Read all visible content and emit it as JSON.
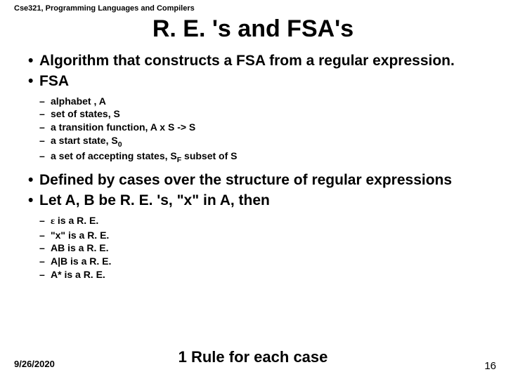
{
  "course_label": "Cse321, Programming Languages and Compilers",
  "title": "R. E. 's and FSA's",
  "bullets": {
    "b1": "Algorithm that constructs a FSA from a regular expression.",
    "b2": "FSA",
    "b2_sub": {
      "s1": "alphabet , A",
      "s2": "set of states, S",
      "s3": "a transition function,  A x S -> S",
      "s4_pre": "a start state, S",
      "s4_sub": "0",
      "s5_pre": "a set of accepting states, S",
      "s5_sub": "F",
      "s5_post": " subset of S"
    },
    "b3": "Defined by cases over the structure of regular expressions",
    "b4": "Let A, B be R. E. 's, \"x\" in A, then",
    "b4_sub": {
      "s1_pre": " ",
      "s1_eps": "ε",
      "s1_post": " is a R. E.",
      "s2": "\"x\" is a R. E.",
      "s3": "AB is a R. E.",
      "s4": "A|B is a R. E.",
      "s5": "A* is a R. E."
    }
  },
  "footer_date": "9/26/2020",
  "rule_text": "1 Rule for each case",
  "page_num": "16"
}
